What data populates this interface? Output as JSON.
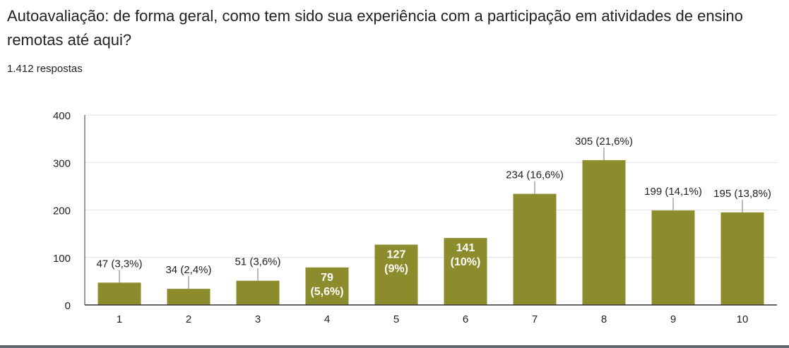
{
  "question": {
    "title": "Autoavaliação: de forma geral, como tem sido sua experiência com a participação em atividades de ensino remotas até aqui?",
    "responses": "1.412 respostas"
  },
  "colors": {
    "bar": "#8c8c2c",
    "grid": "#e0e0e0",
    "axis": "#333333",
    "text": "#202124",
    "inside_label": "#ffffff"
  },
  "chart_data": {
    "type": "bar",
    "title": "",
    "xlabel": "",
    "ylabel": "",
    "ylim": [
      0,
      400
    ],
    "yticks": [
      "0",
      "100",
      "200",
      "300",
      "400"
    ],
    "grid": true,
    "categories": [
      "1",
      "2",
      "3",
      "4",
      "5",
      "6",
      "7",
      "8",
      "9",
      "10"
    ],
    "values": [
      47,
      34,
      51,
      79,
      127,
      141,
      234,
      305,
      199,
      195
    ],
    "data_labels": [
      [
        "47 (3,3%)"
      ],
      [
        "34 (2,4%)"
      ],
      [
        "51 (3,6%)"
      ],
      [
        "79",
        "(5,6%)"
      ],
      [
        "127",
        "(9%)"
      ],
      [
        "141",
        "(10%)"
      ],
      [
        "234 (16,6%)"
      ],
      [
        "305 (21,6%)"
      ],
      [
        "199 (14,1%)"
      ],
      [
        "195 (13,8%)"
      ]
    ],
    "label_inside": [
      false,
      false,
      false,
      true,
      true,
      true,
      false,
      false,
      false,
      false
    ]
  }
}
